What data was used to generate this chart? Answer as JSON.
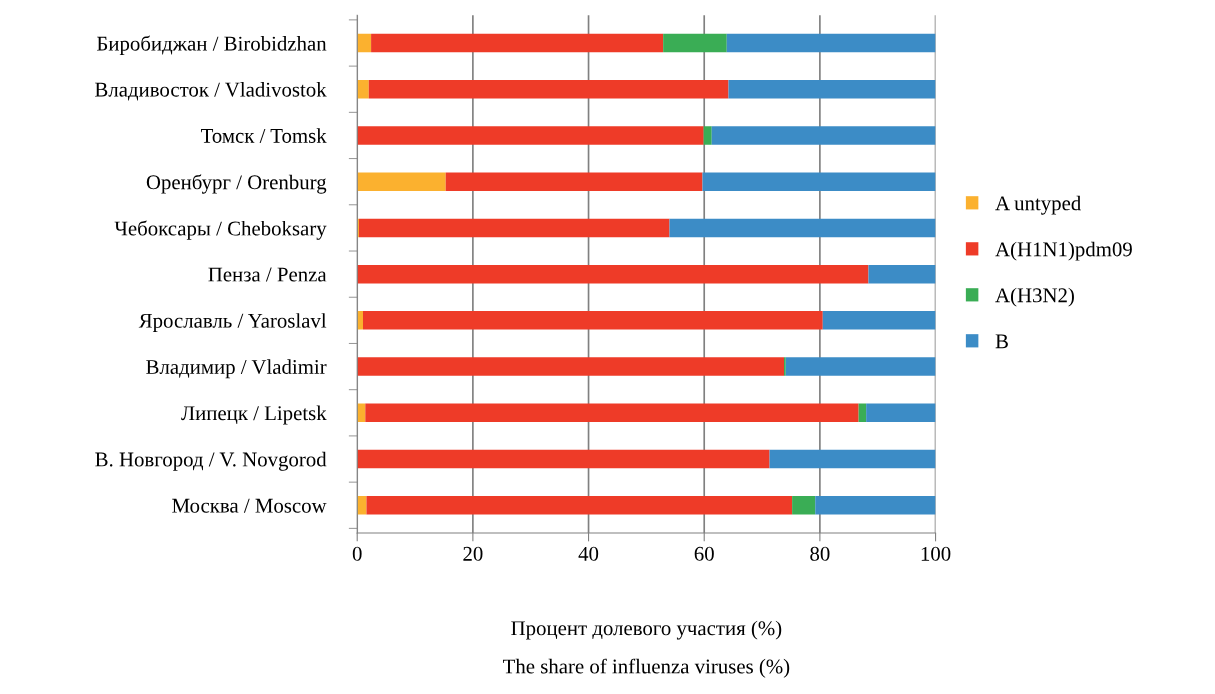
{
  "chart_data": {
    "type": "bar",
    "orientation": "horizontal",
    "stacked": true,
    "categories": [
      "Биробиджан / Birobidzhan",
      "Владивосток / Vladivostok",
      "Томск / Tomsk",
      "Оренбург / Orenburg",
      "Чебоксары / Cheboksary",
      "Пенза / Penza",
      "Ярославль / Yaroslavl",
      "Владимир / Vladimir",
      "Липецк / Lipetsk",
      "В. Новгород / V. Novgorod",
      "Москва / Moscow"
    ],
    "series": [
      {
        "name": "A untyped",
        "color": "#fbb12f",
        "values": [
          2.4,
          2.0,
          null,
          15.3,
          0.3,
          0,
          1.0,
          0,
          1.4,
          0,
          1.6
        ]
      },
      {
        "name": "A(H1N1)pdm09",
        "color": "#ee3b28",
        "values": [
          50.5,
          62.2,
          59.9,
          44.4,
          53.7,
          88.4,
          79.5,
          73.8,
          85.3,
          71.3,
          73.6
        ]
      },
      {
        "name": "A(H3N2)",
        "color": "#3aad55",
        "values": [
          11.0,
          0,
          1.4,
          0,
          0,
          0,
          0,
          0.3,
          1.3,
          0,
          4.0
        ]
      },
      {
        "name": "B",
        "color": "#3c8cc6",
        "values": [
          36.1,
          35.8,
          38.7,
          40.3,
          46.0,
          11.6,
          19.5,
          25.9,
          12.0,
          28.7,
          20.8
        ]
      }
    ],
    "xlim": [
      0,
      100
    ],
    "xticks": [
      0,
      20,
      40,
      60,
      80,
      100
    ],
    "xlabel": "Процент долевого участия (%)\nThe share of influenza viruses (%)",
    "grid": "x",
    "legend": "right"
  }
}
